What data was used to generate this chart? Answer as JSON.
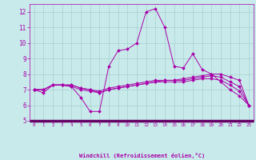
{
  "xlabel": "Windchill (Refroidissement éolien,°C)",
  "xlim": [
    -0.5,
    23.5
  ],
  "ylim": [
    5,
    12.5
  ],
  "yticks": [
    5,
    6,
    7,
    8,
    9,
    10,
    11,
    12
  ],
  "xticks": [
    0,
    1,
    2,
    3,
    4,
    5,
    6,
    7,
    8,
    9,
    10,
    11,
    12,
    13,
    14,
    15,
    16,
    17,
    18,
    19,
    20,
    21,
    22,
    23
  ],
  "background_color": "#c8eaea",
  "grid_color": "#a8d0d0",
  "line_color": "#aa00aa",
  "separator_color": "#660066",
  "series": [
    [
      7.0,
      6.8,
      7.3,
      7.3,
      7.2,
      6.5,
      5.6,
      5.6,
      8.5,
      9.5,
      9.6,
      10.0,
      12.0,
      12.2,
      11.0,
      8.5,
      8.4,
      9.3,
      8.3,
      8.0,
      7.5,
      7.0,
      6.6,
      6.0
    ],
    [
      7.0,
      7.0,
      7.3,
      7.3,
      7.3,
      7.1,
      7.0,
      6.8,
      7.0,
      7.1,
      7.2,
      7.3,
      7.4,
      7.5,
      7.6,
      7.6,
      7.7,
      7.8,
      7.9,
      8.0,
      8.0,
      7.8,
      7.6,
      6.0
    ],
    [
      7.0,
      7.0,
      7.3,
      7.3,
      7.3,
      7.1,
      7.0,
      6.9,
      7.1,
      7.2,
      7.3,
      7.4,
      7.5,
      7.6,
      7.6,
      7.6,
      7.6,
      7.7,
      7.8,
      7.9,
      7.8,
      7.5,
      7.2,
      6.0
    ],
    [
      7.0,
      7.0,
      7.3,
      7.3,
      7.2,
      7.0,
      6.9,
      6.8,
      7.0,
      7.1,
      7.2,
      7.3,
      7.4,
      7.5,
      7.5,
      7.5,
      7.5,
      7.6,
      7.7,
      7.7,
      7.6,
      7.3,
      6.9,
      6.0
    ]
  ]
}
